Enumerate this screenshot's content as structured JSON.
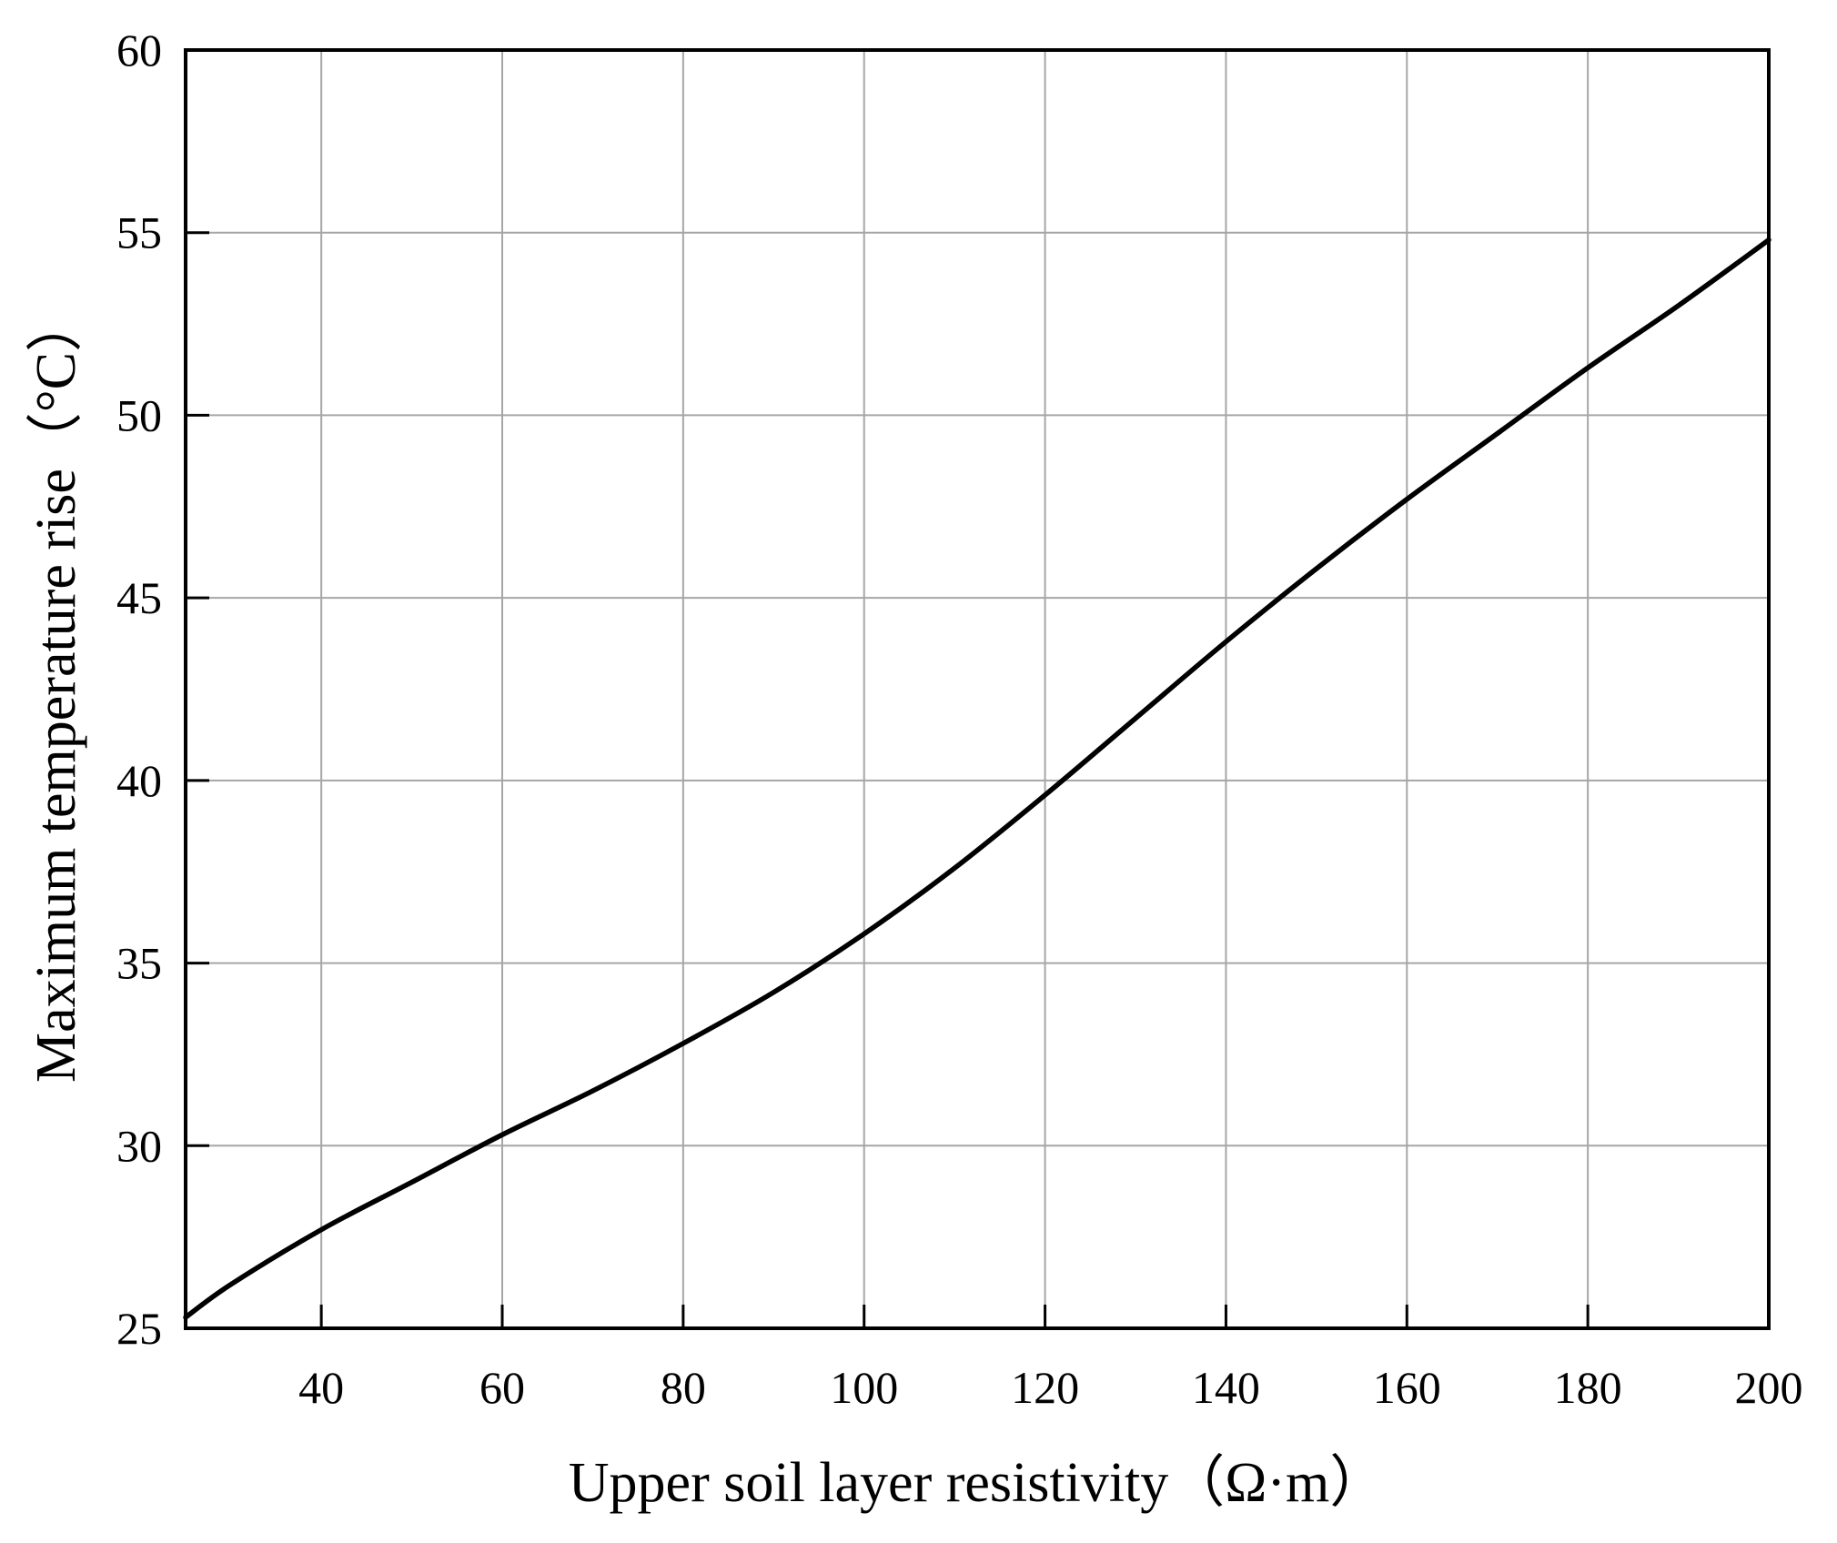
{
  "chart_data": {
    "type": "line",
    "title": "",
    "xlabel": "Upper soil layer resistivity（Ω·m）",
    "ylabel": "Maximum temperature rise（°C）",
    "xlim": [
      25,
      200
    ],
    "ylim": [
      25,
      60
    ],
    "x_ticks": [
      40,
      60,
      80,
      100,
      120,
      140,
      160,
      180,
      200
    ],
    "y_ticks": [
      25,
      30,
      35,
      40,
      45,
      50,
      55,
      60
    ],
    "x_tick_labels": [
      "40",
      "60",
      "80",
      "100",
      "120",
      "140",
      "160",
      "180",
      "200"
    ],
    "y_tick_labels": [
      "25",
      "30",
      "35",
      "40",
      "45",
      "50",
      "55",
      "60"
    ],
    "grid": true,
    "legend": "none",
    "series": [
      {
        "color": "#000000",
        "x": [
          25,
          30,
          40,
          50,
          60,
          70,
          80,
          90,
          100,
          110,
          120,
          130,
          140,
          150,
          160,
          170,
          180,
          190,
          200
        ],
        "y": [
          25.3,
          26.2,
          27.7,
          29.0,
          30.3,
          31.5,
          32.8,
          34.2,
          35.8,
          37.6,
          39.6,
          41.7,
          43.8,
          45.8,
          47.7,
          49.5,
          51.3,
          53.0,
          54.8
        ]
      }
    ]
  }
}
